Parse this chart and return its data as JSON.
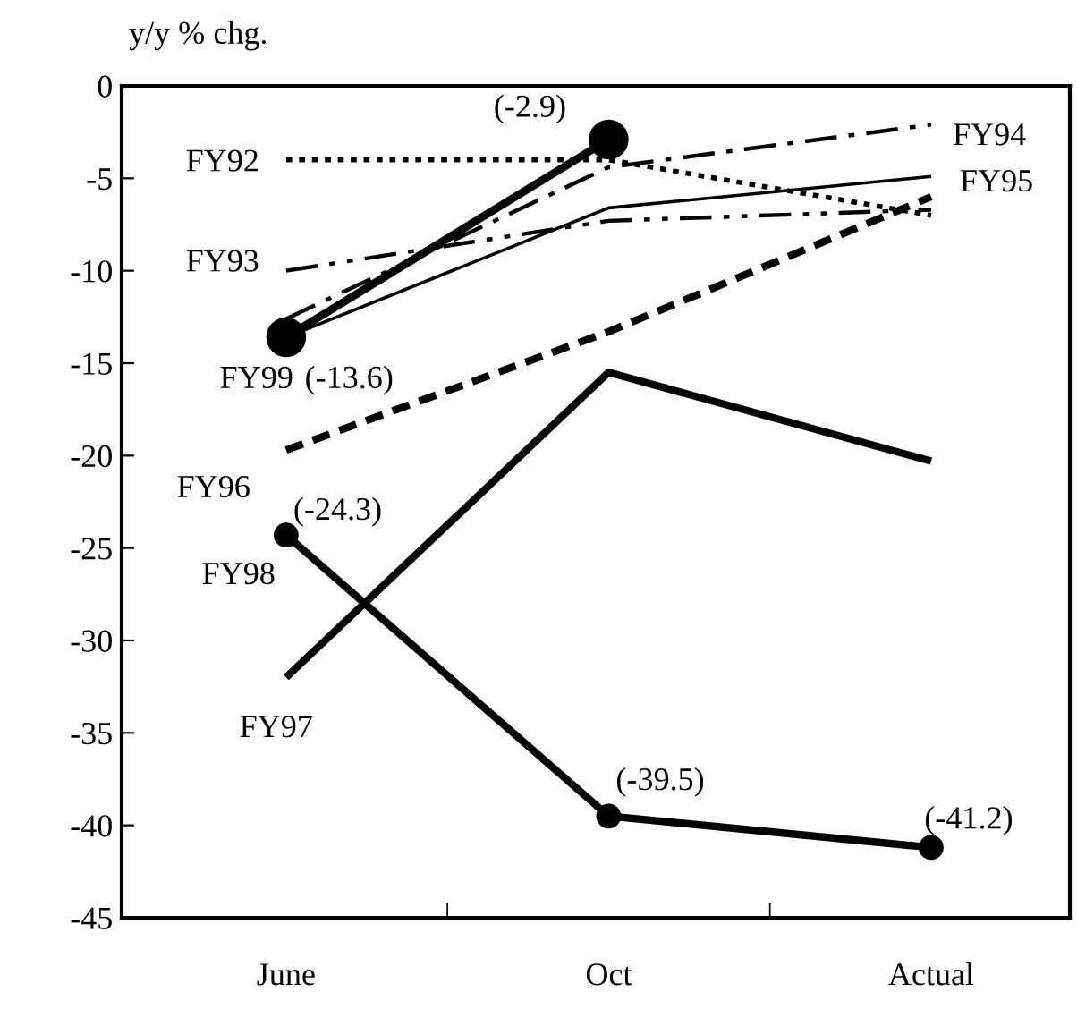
{
  "chart_data": {
    "type": "line",
    "ylabel": "y/y % chg.",
    "categories": [
      "June",
      "Oct",
      "Actual"
    ],
    "ylim": [
      -45,
      0
    ],
    "yticks": [
      0,
      -5,
      -10,
      -15,
      -20,
      -25,
      -30,
      -35,
      -40,
      -45
    ],
    "grid": false,
    "series": [
      {
        "name": "FY92",
        "color": "#000000",
        "line_style": "dotted",
        "marker": "none",
        "values": [
          -4,
          -4,
          -7
        ]
      },
      {
        "name": "FY93",
        "color": "#000000",
        "line_style": "dashdotdot",
        "marker": "none",
        "values": [
          -10,
          -7.3,
          -6.7
        ]
      },
      {
        "name": "FY94",
        "color": "#000000",
        "line_style": "dashdot",
        "marker": "none",
        "values": [
          -12.6,
          -4.4,
          -2.1
        ]
      },
      {
        "name": "FY95",
        "color": "#000000",
        "line_style": "solid",
        "marker": "none",
        "values": [
          -13.6,
          -6.6,
          -4.9
        ]
      },
      {
        "name": "FY96",
        "color": "#000000",
        "line_style": "dashed",
        "marker": "none",
        "values": [
          -19.7,
          -13.3,
          -6
        ]
      },
      {
        "name": "FY97",
        "color": "#000000",
        "line_style": "solid",
        "marker": "none",
        "values": [
          -32,
          -15.5,
          -20.3
        ]
      },
      {
        "name": "FY98",
        "color": "#000000",
        "line_style": "solid",
        "marker": "circle",
        "values": [
          -24.3,
          -39.5,
          -41.2
        ],
        "value_labels": [
          "(-24.3)",
          "(-39.5)",
          "(-41.2)"
        ]
      },
      {
        "name": "FY99",
        "color": "#000000",
        "line_style": "solid",
        "marker": "circle",
        "values": [
          -13.6,
          -2.9,
          null
        ],
        "value_labels": [
          "(-13.6)",
          "(-2.9)",
          null
        ]
      }
    ]
  }
}
